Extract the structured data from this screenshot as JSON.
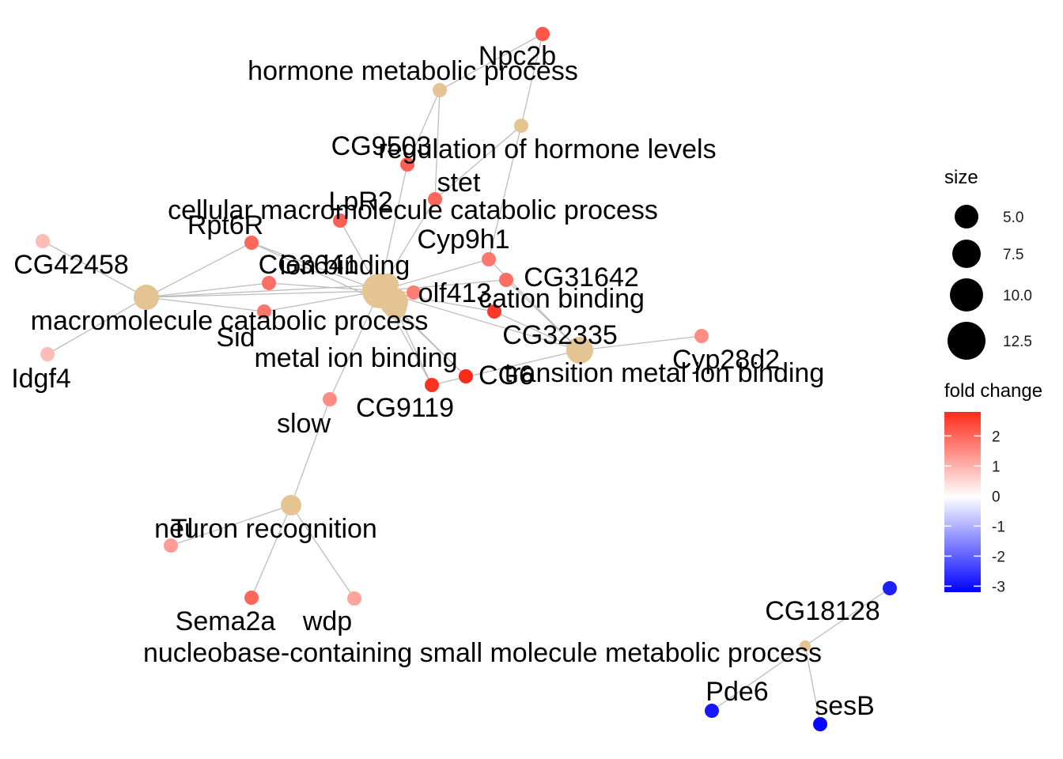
{
  "colors": {
    "category_node": "#E5C494",
    "edge": "#BDBDBD",
    "low": "#0000FF",
    "mid": "#FFFFFF",
    "high": "#FF2A1A"
  },
  "legend": {
    "size_title": "size",
    "size_values": [
      "5.0",
      "7.5",
      "10.0",
      "12.5"
    ],
    "color_title": "fold change",
    "color_ticks": [
      "2",
      "1",
      "0",
      "-1",
      "-2",
      "-3"
    ],
    "color_range": [
      -3.2,
      2.8
    ]
  },
  "categories": [
    {
      "id": "hormone-metabolic-process",
      "label": "hormone metabolic process"
    },
    {
      "id": "regulation-of-hormone-levels",
      "label": "regulation of hormone levels"
    },
    {
      "id": "cellular-macromolecule-catabolic-process",
      "label": "cellular macromolecule catabolic process"
    },
    {
      "id": "ion-binding",
      "label": "ion binding"
    },
    {
      "id": "cation-binding",
      "label": "cation binding"
    },
    {
      "id": "macromolecule-catabolic-process",
      "label": "macromolecule catabolic process"
    },
    {
      "id": "metal-ion-binding",
      "label": "metal ion binding"
    },
    {
      "id": "transition-metal-ion-binding",
      "label": "transition metal ion binding"
    },
    {
      "id": "neuron-recognition",
      "label": "neuron recognition"
    },
    {
      "id": "nucleobase-containing-small-molecule-metabolic-process",
      "label": "nucleobase-containing small molecule metabolic process"
    }
  ],
  "genes": [
    {
      "id": "Npc2b",
      "label": "Npc2b",
      "fold_change": 2.2
    },
    {
      "id": "CG9503",
      "label": "CG9503",
      "fold_change": 2.1
    },
    {
      "id": "stet",
      "label": "stet",
      "fold_change": 2.0
    },
    {
      "id": "LpR2",
      "label": "LpR2",
      "fold_change": 2.1
    },
    {
      "id": "Rpt6R",
      "label": "Rpt6R",
      "fold_change": 2.0
    },
    {
      "id": "CG42458",
      "label": "CG42458",
      "fold_change": 0.9
    },
    {
      "id": "CG3641",
      "label": "CG3641",
      "fold_change": 1.9
    },
    {
      "id": "Cyp9h1",
      "label": "Cyp9h1",
      "fold_change": 1.8
    },
    {
      "id": "CG31642",
      "label": "CG31642",
      "fold_change": 1.9
    },
    {
      "id": "olf413",
      "label": "olf413",
      "fold_change": 1.7
    },
    {
      "id": "Sid",
      "label": "Sid",
      "fold_change": 1.8
    },
    {
      "id": "CG32335",
      "label": "CG32335",
      "fold_change": 2.6
    },
    {
      "id": "Idgf4",
      "label": "Idgf4",
      "fold_change": 0.9
    },
    {
      "id": "Cyp28d2",
      "label": "Cyp28d2",
      "fold_change": 1.5
    },
    {
      "id": "CG9119",
      "label": "CG9119",
      "fold_change": 2.7
    },
    {
      "id": "CG6",
      "label": "CG6",
      "fold_change": 2.8
    },
    {
      "id": "slow",
      "label": "slow",
      "fold_change": 1.5
    },
    {
      "id": "Tl",
      "label": "Tl",
      "fold_change": 1.3
    },
    {
      "id": "Sema2a",
      "label": "Sema2a",
      "fold_change": 2.0
    },
    {
      "id": "wdp",
      "label": "wdp",
      "fold_change": 1.2
    },
    {
      "id": "CG18128",
      "label": "CG18128",
      "fold_change": -2.8
    },
    {
      "id": "Pde6",
      "label": "Pde6",
      "fold_change": -2.9
    },
    {
      "id": "sesB",
      "label": "sesB",
      "fold_change": -3.1
    }
  ]
}
